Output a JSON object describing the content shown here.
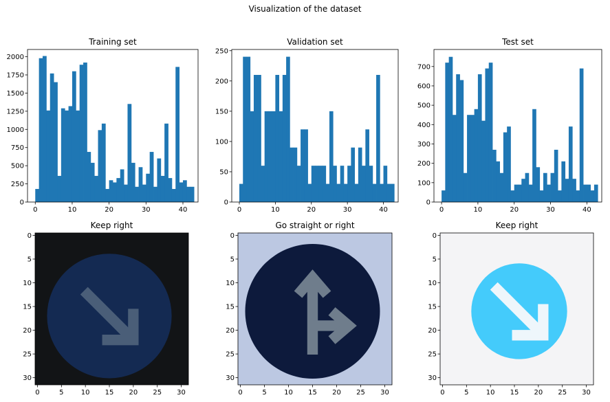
{
  "figure_title": "Visualization of the dataset",
  "chart_data": [
    {
      "type": "bar",
      "title": "Training set",
      "xlabel": "",
      "ylabel": "",
      "xlim": [
        -2.1,
        44.1
      ],
      "ylim": [
        0,
        2100
      ],
      "xticks": [
        0,
        10,
        20,
        30,
        40
      ],
      "yticks": [
        0,
        250,
        500,
        750,
        1000,
        1250,
        1500,
        1750,
        2000
      ],
      "bin_start": 0,
      "bin_width": 1,
      "values": [
        180,
        1980,
        2010,
        1260,
        1770,
        1650,
        360,
        1290,
        1260,
        1320,
        1800,
        1260,
        1890,
        1920,
        690,
        540,
        360,
        990,
        1080,
        180,
        300,
        270,
        330,
        450,
        240,
        1350,
        540,
        210,
        480,
        240,
        390,
        690,
        210,
        600,
        360,
        1080,
        330,
        180,
        1860,
        270,
        300,
        210,
        210
      ],
      "color": "#1f77b4"
    },
    {
      "type": "bar",
      "title": "Validation set",
      "xlabel": "",
      "ylabel": "",
      "xlim": [
        -2.1,
        44.1
      ],
      "ylim": [
        0,
        252
      ],
      "xticks": [
        0,
        10,
        20,
        30,
        40
      ],
      "yticks": [
        0,
        50,
        100,
        150,
        200,
        250
      ],
      "bin_start": 0,
      "bin_width": 1,
      "values": [
        30,
        240,
        240,
        150,
        210,
        210,
        60,
        150,
        150,
        150,
        210,
        150,
        210,
        240,
        90,
        90,
        60,
        120,
        120,
        30,
        60,
        60,
        60,
        60,
        30,
        150,
        60,
        30,
        60,
        30,
        60,
        90,
        30,
        90,
        60,
        120,
        60,
        30,
        210,
        30,
        60,
        30,
        30
      ],
      "color": "#1f77b4"
    },
    {
      "type": "bar",
      "title": "Test set",
      "xlabel": "",
      "ylabel": "",
      "xlim": [
        -2.1,
        44.1
      ],
      "ylim": [
        0,
        788
      ],
      "xticks": [
        0,
        10,
        20,
        30,
        40
      ],
      "yticks": [
        0,
        100,
        200,
        300,
        400,
        500,
        600,
        700
      ],
      "bin_start": 0,
      "bin_width": 1,
      "values": [
        60,
        720,
        750,
        450,
        660,
        630,
        150,
        450,
        450,
        480,
        660,
        420,
        690,
        720,
        270,
        210,
        150,
        360,
        390,
        60,
        90,
        90,
        120,
        150,
        90,
        480,
        180,
        60,
        150,
        90,
        150,
        270,
        60,
        210,
        120,
        390,
        120,
        60,
        690,
        90,
        90,
        60,
        90
      ],
      "color": "#1f77b4"
    },
    {
      "type": "heatmap",
      "title": "Keep right",
      "xlim": [
        -0.5,
        31.5
      ],
      "ylim": [
        31.5,
        -0.5
      ],
      "xticks": [
        0,
        5,
        10,
        15,
        20,
        25,
        30
      ],
      "yticks": [
        0,
        5,
        10,
        15,
        20,
        25,
        30
      ],
      "background": "#121416",
      "sign_color": "#142a52",
      "sign_center": [
        15,
        17
      ],
      "sign_radius": 13,
      "arrow": "down-right",
      "arrow_color": "#4a5e78"
    },
    {
      "type": "heatmap",
      "title": "Go straight or right",
      "xlim": [
        -0.5,
        31.5
      ],
      "ylim": [
        31.5,
        -0.5
      ],
      "xticks": [
        0,
        5,
        10,
        15,
        20,
        25,
        30
      ],
      "yticks": [
        0,
        5,
        10,
        15,
        20,
        25,
        30
      ],
      "background": "#bcc8e2",
      "sign_color": "#0d1a3c",
      "sign_center": [
        15,
        16
      ],
      "sign_radius": 14,
      "arrow": "straight-or-right",
      "arrow_color": "#6f7d8c"
    },
    {
      "type": "heatmap",
      "title": "Keep right",
      "xlim": [
        -0.5,
        31.5
      ],
      "ylim": [
        31.5,
        -0.5
      ],
      "xticks": [
        0,
        5,
        10,
        15,
        20,
        25,
        30
      ],
      "yticks": [
        0,
        5,
        10,
        15,
        20,
        25,
        30
      ],
      "background": "#f4f4f6",
      "sign_color": "#44cbfb",
      "sign_center": [
        16,
        16
      ],
      "sign_radius": 10,
      "arrow": "down-right",
      "arrow_color": "#eef6fb"
    }
  ]
}
